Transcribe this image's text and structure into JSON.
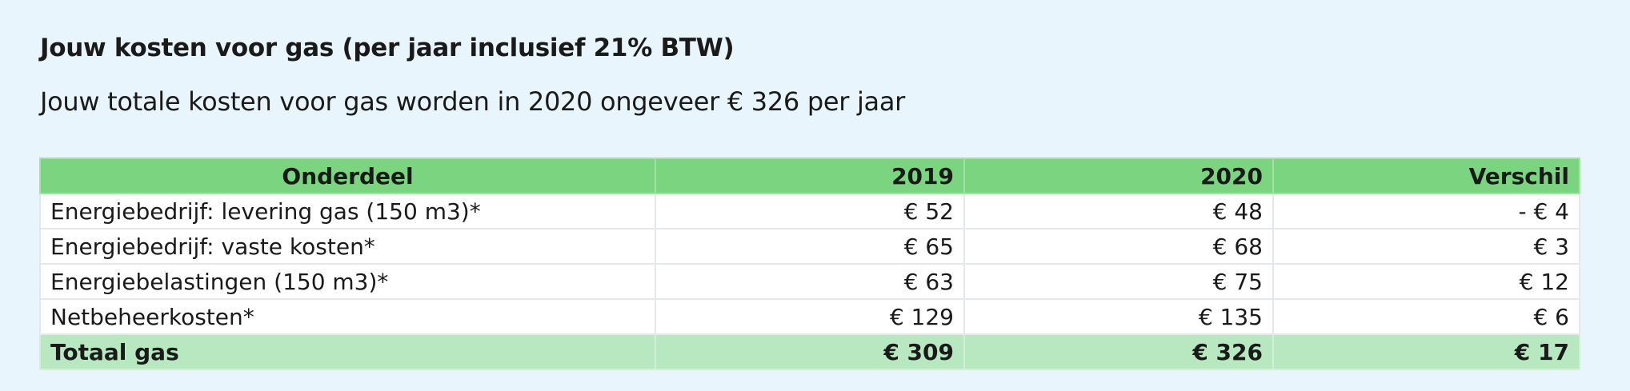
{
  "header": {
    "title": "Jouw kosten voor gas (per jaar inclusief 21% BTW)",
    "subtitle": "Jouw totale kosten voor gas worden in 2020 ongeveer € 326 per jaar"
  },
  "table": {
    "columns": [
      "Onderdeel",
      "2019",
      "2020",
      "Verschil"
    ],
    "rows": [
      [
        "Energiebedrijf: levering gas (150 m3)*",
        "€ 52",
        "€ 48",
        "- € 4"
      ],
      [
        "Energiebedrijf: vaste kosten*",
        "€ 65",
        "€ 68",
        "€ 3"
      ],
      [
        "Energiebelastingen (150 m3)*",
        "€ 63",
        "€ 75",
        "€ 12"
      ],
      [
        "Netbeheerkosten*",
        "€ 129",
        "€ 135",
        "€ 6"
      ]
    ],
    "total": [
      "Totaal gas",
      "€ 309",
      "€ 326",
      "€ 17"
    ]
  }
}
